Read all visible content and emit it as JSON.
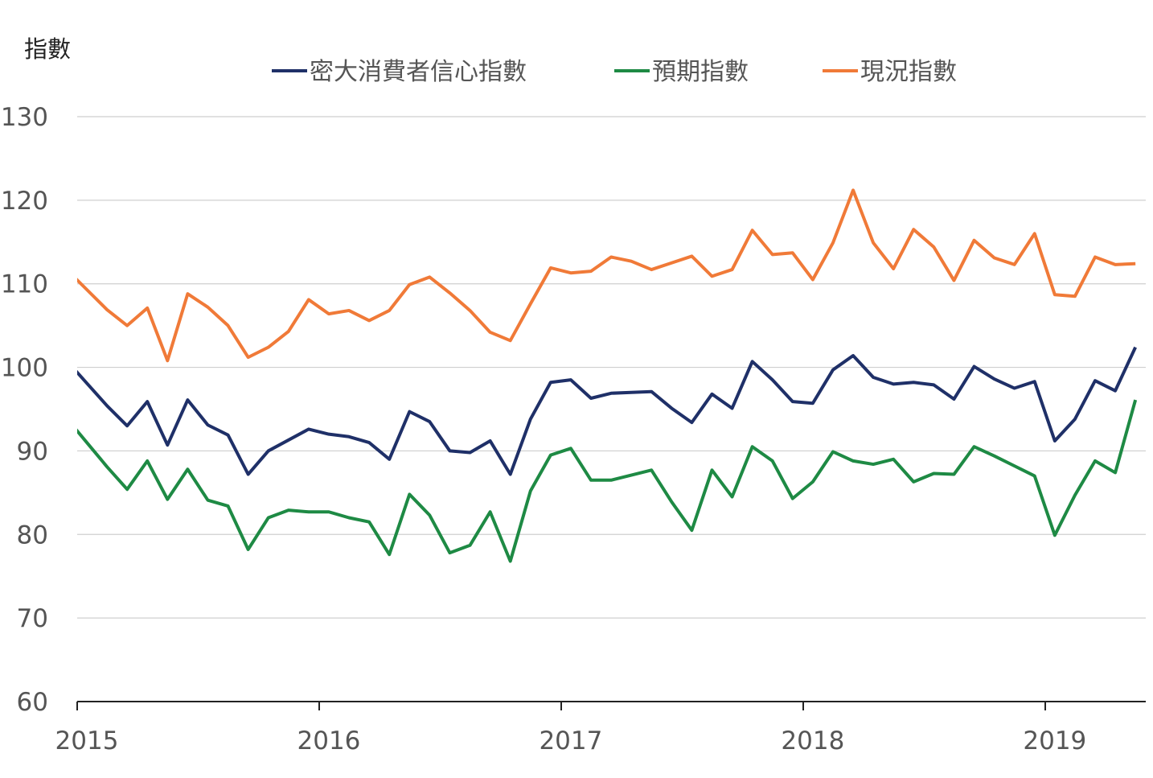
{
  "chart_data": {
    "type": "line",
    "ylabel": "指數",
    "ylim": [
      60,
      130
    ],
    "yticks": [
      60,
      70,
      80,
      90,
      100,
      110,
      120,
      130
    ],
    "xtick_labels": [
      "2015",
      "2016",
      "2017",
      "2018",
      "2019"
    ],
    "x_start": "2015-01",
    "x_end": "2019-05",
    "grid": "horizontal",
    "legend_position": "top",
    "series": [
      {
        "name": "密大消費者信心指數",
        "color": "#1f3068",
        "values": [
          98.1,
          95.4,
          93.0,
          95.9,
          90.7,
          96.1,
          93.1,
          91.9,
          87.2,
          90.0,
          91.3,
          92.6,
          92.0,
          91.7,
          91.0,
          89.0,
          94.7,
          93.5,
          90.0,
          89.8,
          91.2,
          87.2,
          93.8,
          98.2,
          98.5,
          96.3,
          96.9,
          97.0,
          97.1,
          95.1,
          93.4,
          96.8,
          95.1,
          100.7,
          98.5,
          95.9,
          95.7,
          99.7,
          101.4,
          98.8,
          98.0,
          98.2,
          97.9,
          96.2,
          100.1,
          98.6,
          97.5,
          98.3,
          91.2,
          93.8,
          98.4,
          97.2,
          102.4
        ]
      },
      {
        "name": "預期指數",
        "color": "#1e8a44",
        "values": [
          91.0,
          88.1,
          85.4,
          88.8,
          84.2,
          87.8,
          84.1,
          83.4,
          78.2,
          82.0,
          82.9,
          82.7,
          82.7,
          82.0,
          81.5,
          77.6,
          84.8,
          82.3,
          77.8,
          78.7,
          82.7,
          76.8,
          85.2,
          89.5,
          90.3,
          86.5,
          86.5,
          87.1,
          87.7,
          83.9,
          80.5,
          87.7,
          84.5,
          90.5,
          88.8,
          84.3,
          86.3,
          89.9,
          88.8,
          88.4,
          89.0,
          86.3,
          87.3,
          87.2,
          90.5,
          89.4,
          88.2,
          87.0,
          79.9,
          84.7,
          88.8,
          87.4,
          96.1
        ]
      },
      {
        "name": "現況指數",
        "color": "#f07a38",
        "values": [
          109.3,
          106.9,
          105.0,
          107.1,
          100.8,
          108.8,
          107.2,
          105.0,
          101.2,
          102.4,
          104.3,
          108.1,
          106.4,
          106.8,
          105.6,
          106.8,
          109.9,
          110.8,
          108.9,
          106.8,
          104.2,
          103.2,
          107.6,
          111.9,
          111.3,
          111.5,
          113.2,
          112.7,
          111.7,
          112.5,
          113.3,
          110.9,
          111.7,
          116.4,
          113.5,
          113.7,
          110.5,
          114.9,
          121.2,
          114.9,
          111.8,
          116.5,
          114.4,
          110.4,
          115.2,
          113.1,
          112.3,
          116.0,
          108.7,
          108.5,
          113.2,
          112.3,
          112.4
        ]
      }
    ]
  }
}
